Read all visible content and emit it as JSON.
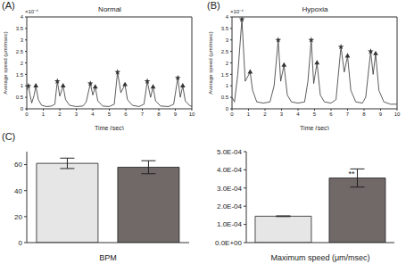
{
  "chart_data": [
    {
      "type": "line",
      "panel_label": "(A)",
      "title": "Normal",
      "x_label": "Time (sec)",
      "y_label": "Average speed (μm/msec)",
      "y_multiplier": "×10⁻⁴",
      "x": [
        0,
        0.1,
        0.2,
        0.3,
        0.45,
        0.55,
        0.7,
        0.9,
        1.2,
        1.5,
        1.7,
        1.85,
        2.0,
        2.2,
        2.35,
        2.6,
        3.0,
        3.4,
        3.6,
        3.85,
        4.0,
        4.15,
        4.3,
        4.6,
        5.0,
        5.3,
        5.5,
        5.7,
        5.95,
        6.1,
        6.4,
        6.8,
        7.1,
        7.3,
        7.5,
        7.65,
        7.8,
        8.1,
        8.6,
        8.9,
        9.15,
        9.3,
        9.45,
        9.6,
        9.85,
        10
      ],
      "values": [
        0.8,
        1.0,
        0.6,
        0.25,
        0.6,
        1.0,
        0.4,
        0.15,
        0.1,
        0.12,
        0.2,
        1.2,
        0.55,
        1.0,
        0.4,
        0.15,
        0.1,
        0.12,
        0.3,
        1.1,
        0.6,
        0.95,
        0.35,
        0.12,
        0.1,
        0.2,
        1.6,
        0.7,
        1.05,
        0.4,
        0.15,
        0.1,
        0.2,
        1.2,
        0.5,
        0.95,
        0.35,
        0.12,
        0.1,
        0.2,
        1.35,
        0.5,
        1.0,
        0.35,
        0.15,
        0.1
      ],
      "color": "#333333",
      "peaks": [
        {
          "marker": "star",
          "x": [
            0.1,
            1.85,
            3.85,
            5.5,
            7.3,
            9.15
          ],
          "y": [
            1.0,
            1.2,
            1.1,
            1.6,
            1.2,
            1.35
          ]
        },
        {
          "marker": "triangle",
          "x": [
            0.55,
            2.2,
            4.15,
            5.95,
            7.65,
            9.45
          ],
          "y": [
            1.0,
            1.0,
            0.95,
            1.05,
            0.95,
            1.0
          ]
        }
      ],
      "xlim": [
        0,
        10
      ],
      "ylim": [
        0,
        4
      ],
      "xticks": [
        0,
        1,
        2,
        3,
        4,
        5,
        6,
        7,
        8,
        9,
        10
      ],
      "yticks": [
        0,
        0.5,
        1,
        1.5,
        2,
        2.5,
        3,
        3.5,
        4
      ]
    },
    {
      "type": "line",
      "panel_label": "(B)",
      "title": "Hypoxia",
      "x_label": "Time (sec)",
      "y_label": "Average speed (μm/msec)",
      "y_multiplier": "×10⁻⁴",
      "x": [
        0,
        0.15,
        0.35,
        0.6,
        0.8,
        0.95,
        1.1,
        1.25,
        1.5,
        1.9,
        2.3,
        2.55,
        2.8,
        2.95,
        3.15,
        3.35,
        3.6,
        4.0,
        4.4,
        4.6,
        4.8,
        4.95,
        5.15,
        5.35,
        5.6,
        6.0,
        6.3,
        6.6,
        6.8,
        7.0,
        7.2,
        7.5,
        7.9,
        8.1,
        8.4,
        8.55,
        8.7,
        8.9,
        9.2,
        9.6,
        10
      ],
      "values": [
        0.5,
        0.3,
        1.5,
        3.9,
        1.2,
        1.4,
        1.6,
        0.8,
        0.3,
        0.25,
        0.3,
        1.0,
        3.0,
        1.2,
        1.9,
        0.6,
        0.3,
        0.25,
        0.3,
        1.2,
        3.0,
        1.1,
        2.0,
        0.6,
        0.3,
        0.25,
        0.4,
        2.7,
        1.6,
        2.3,
        0.8,
        0.3,
        0.25,
        0.5,
        2.5,
        1.5,
        2.4,
        0.8,
        0.3,
        0.2,
        0.2
      ],
      "color": "#333333",
      "peaks": [
        {
          "marker": "star",
          "x": [
            0.6,
            2.8,
            4.8,
            6.6,
            8.4
          ],
          "y": [
            3.9,
            3.0,
            3.0,
            2.7,
            2.5
          ]
        },
        {
          "marker": "triangle",
          "x": [
            1.1,
            3.15,
            5.15,
            7.0,
            8.7
          ],
          "y": [
            1.6,
            1.9,
            2.0,
            2.3,
            2.4
          ]
        }
      ],
      "xlim": [
        0,
        10
      ],
      "ylim": [
        0,
        4
      ],
      "xticks": [
        0,
        1,
        2,
        3,
        4,
        5,
        6,
        7,
        8,
        9,
        10
      ],
      "yticks": [
        0,
        0.5,
        1,
        1.5,
        2,
        2.5,
        3,
        3.5,
        4
      ]
    },
    {
      "type": "bar",
      "panel_label": "(C)",
      "x_label": "BPM",
      "categories": [
        null,
        null
      ],
      "values": [
        61,
        58
      ],
      "errors": [
        4,
        5
      ],
      "colors": [
        "#e6e6e6",
        "#716868"
      ],
      "ylim": [
        0,
        70
      ],
      "yticks": [
        0,
        20,
        40,
        60
      ]
    },
    {
      "type": "bar",
      "x_label": "Maximum speed (μm/msec)",
      "categories": [
        null,
        null
      ],
      "values": [
        0.000145,
        0.000355
      ],
      "errors": [
        2e-06,
        5e-05
      ],
      "annotations": [
        null,
        "**"
      ],
      "colors": [
        "#e6e6e6",
        "#716868"
      ],
      "ylim": [
        0,
        0.0005
      ],
      "yticks": [
        {
          "value": 0,
          "label": "0.0E+00"
        },
        {
          "value": 0.0001,
          "label": "1.0E-04"
        },
        {
          "value": 0.0002,
          "label": "2.0E-04"
        },
        {
          "value": 0.0003,
          "label": "3.0E-04"
        },
        {
          "value": 0.0004,
          "label": "4.0E-04"
        },
        {
          "value": 0.0005,
          "label": "5.0E-04"
        }
      ]
    }
  ]
}
